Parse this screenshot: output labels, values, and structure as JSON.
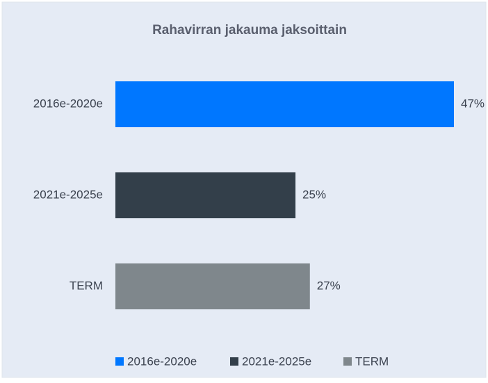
{
  "chart_data": {
    "type": "bar",
    "orientation": "horizontal",
    "title": "Rahavirran jakauma jaksoittain",
    "categories": [
      "2016e-2020e",
      "2021e-2025e",
      "TERM"
    ],
    "values": [
      47,
      25,
      27
    ],
    "value_labels": [
      "47%",
      "25%",
      "27%"
    ],
    "colors": [
      "#0077ff",
      "#333f4a",
      "#7f878c"
    ],
    "legend": "bottom"
  }
}
